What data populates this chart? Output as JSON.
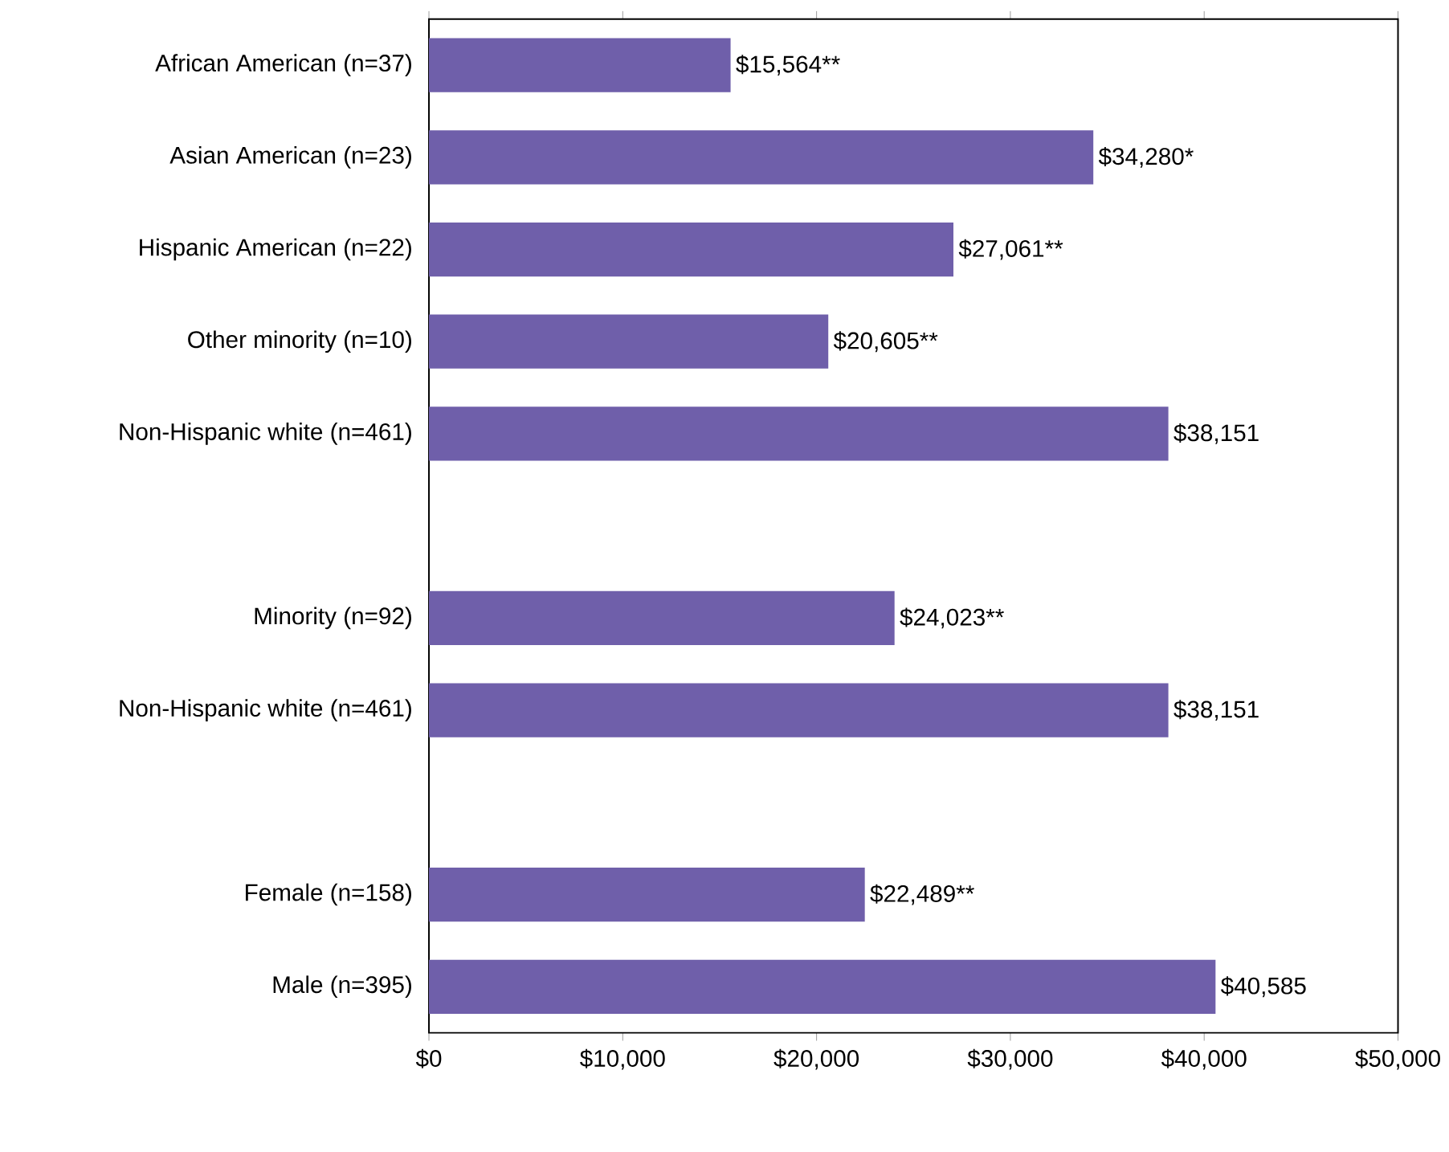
{
  "chart_data": {
    "type": "bar",
    "orientation": "horizontal",
    "color": "#6f5faa",
    "categories": [
      "African American (n=37)",
      "Asian American (n=23)",
      "Hispanic American (n=22)",
      "Other minority (n=10)",
      "Non-Hispanic white (n=461)",
      null,
      "Minority (n=92)",
      "Non-Hispanic white (n=461)",
      null,
      "Female (n=158)",
      "Male (n=395)"
    ],
    "values": [
      15564,
      34280,
      27061,
      20605,
      38151,
      null,
      24023,
      38151,
      null,
      22489,
      40585
    ],
    "value_labels": [
      "$15,564**",
      "$34,280*",
      "$27,061**",
      "$20,605**",
      "$38,151",
      null,
      "$24,023**",
      "$38,151",
      null,
      "$22,489**",
      "$40,585"
    ],
    "xlim": [
      0,
      50000
    ],
    "xticks": [
      {
        "value": 0,
        "label": "$0"
      },
      {
        "value": 10000,
        "label": "$10,000"
      },
      {
        "value": 20000,
        "label": "$20,000"
      },
      {
        "value": 30000,
        "label": "$30,000"
      },
      {
        "value": 40000,
        "label": "$40,000"
      },
      {
        "value": 50000,
        "label": "$50,000"
      }
    ]
  }
}
